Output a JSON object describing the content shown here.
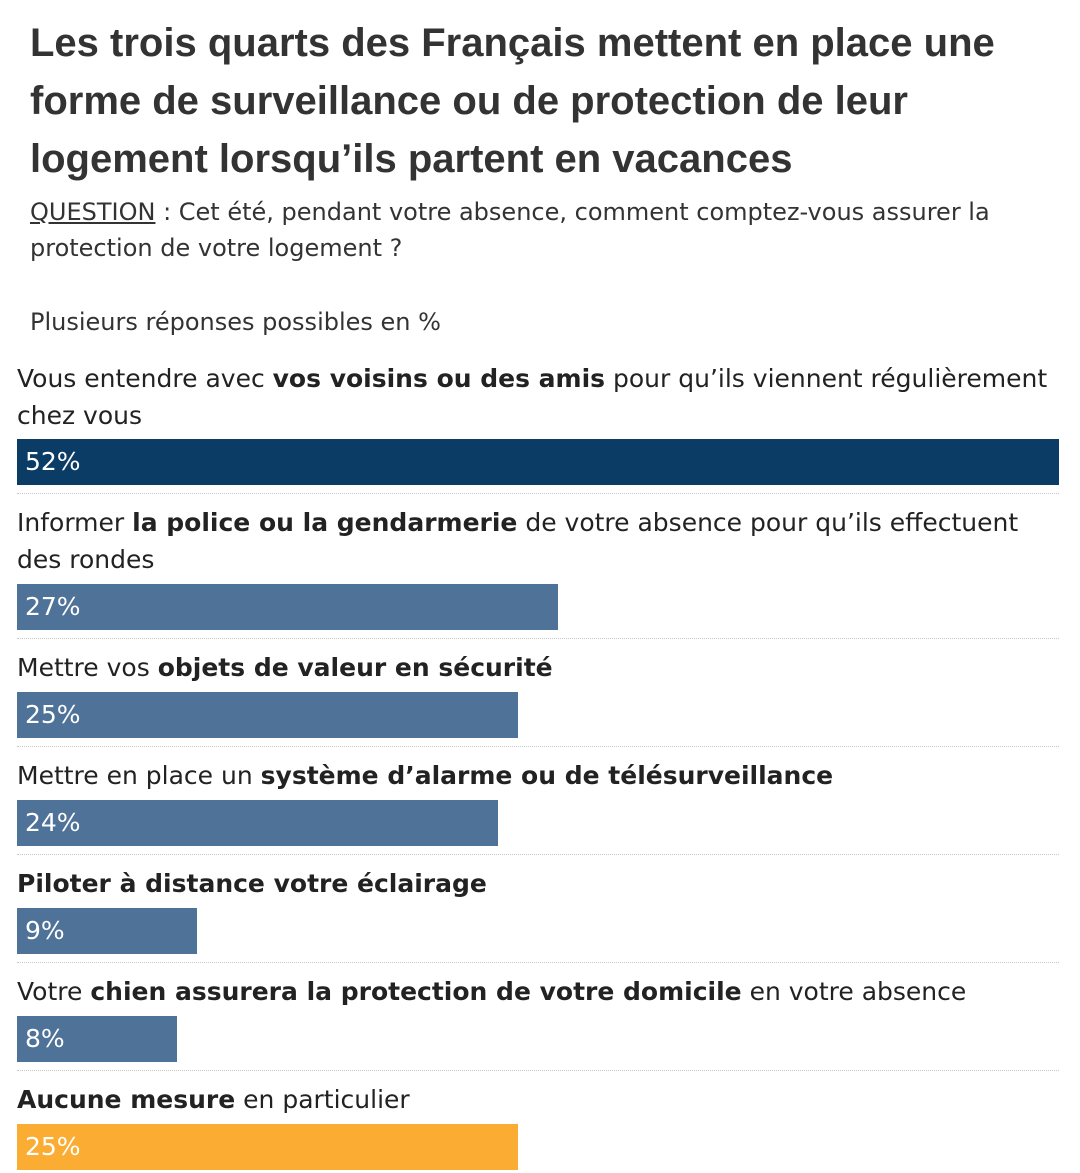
{
  "title": "Les trois quarts des Français mettent en place une forme de surveillance ou de protection de leur logement lorsqu’ils partent en vacances",
  "question_label": "QUESTION",
  "question_text": " : Cet été, pendant votre absence, comment comptez-vous assurer la protection de votre logement ?",
  "subtitle": "Plusieurs réponses possibles en %",
  "colors": {
    "highlight": "#0b3c66",
    "default": "#4f7298",
    "none": "#fbad33"
  },
  "chart_data": {
    "type": "bar",
    "orientation": "horizontal",
    "unit": "%",
    "xlim": [
      0,
      52
    ],
    "categories": [
      "Vous entendre avec vos voisins ou des amis pour qu’ils viennent régulièrement chez vous",
      "Informer la police ou la gendarmerie de votre absence pour qu’ils effectuent des rondes",
      "Mettre vos objets de valeur en sécurité",
      "Mettre en place un système d’alarme ou de télésurveillance",
      "Piloter à distance votre éclairage",
      "Votre chien assurera la protection de votre domicile en votre absence",
      "Aucune mesure en particulier"
    ],
    "label_parts": [
      [
        {
          "t": "Vous entendre avec ",
          "b": false
        },
        {
          "t": "vos voisins ou des amis",
          "b": true
        },
        {
          "t": " pour qu’ils viennent régulièrement chez vous",
          "b": false
        }
      ],
      [
        {
          "t": "Informer ",
          "b": false
        },
        {
          "t": "la police ou la gendarmerie",
          "b": true
        },
        {
          "t": " de votre absence pour qu’ils effectuent des rondes",
          "b": false
        }
      ],
      [
        {
          "t": "Mettre vos ",
          "b": false
        },
        {
          "t": "objets de valeur en sécurité",
          "b": true
        }
      ],
      [
        {
          "t": "Mettre en place un ",
          "b": false
        },
        {
          "t": "système d’alarme ou de télésurveillance",
          "b": true
        }
      ],
      [
        {
          "t": "Piloter à distance votre éclairage",
          "b": true
        }
      ],
      [
        {
          "t": "Votre ",
          "b": false
        },
        {
          "t": "chien assurera la protection de votre domicile",
          "b": true
        },
        {
          "t": " en votre absence",
          "b": false
        }
      ],
      [
        {
          "t": "Aucune mesure",
          "b": true
        },
        {
          "t": " en particulier",
          "b": false
        }
      ]
    ],
    "values": [
      52,
      27,
      25,
      24,
      9,
      8,
      25
    ],
    "value_labels": [
      "52%",
      "27%",
      "25%",
      "24%",
      "9%",
      "8%",
      "25%"
    ],
    "bar_colors": [
      "highlight",
      "default",
      "default",
      "default",
      "default",
      "default",
      "none"
    ]
  }
}
